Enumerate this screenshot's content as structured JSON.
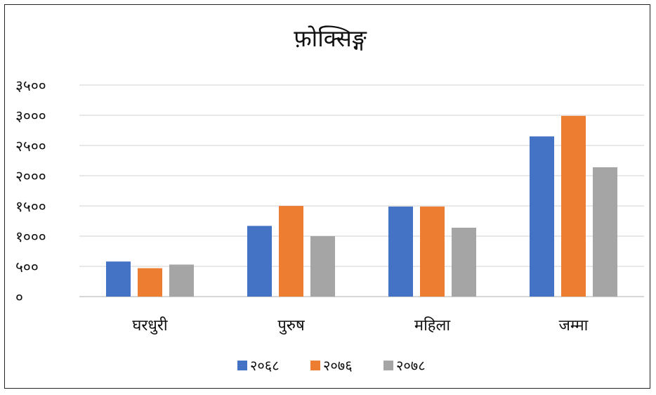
{
  "chart_data": {
    "type": "bar",
    "title": "फ़ोक्सिङ्ग",
    "categories": [
      "घरधुरी",
      "पुरुष",
      "महिला",
      "जम्मा"
    ],
    "series": [
      {
        "name": "२०६८",
        "color": "#4472C4",
        "values": [
          580,
          1170,
          1490,
          2650
        ]
      },
      {
        "name": "२०७६",
        "color": "#ED7D31",
        "values": [
          470,
          1500,
          1490,
          2990
        ]
      },
      {
        "name": "२०७८",
        "color": "#A5A5A5",
        "values": [
          530,
          1000,
          1140,
          2140
        ]
      }
    ],
    "ylim": [
      0,
      3500
    ],
    "yticks": [
      {
        "value": 0,
        "label": "०"
      },
      {
        "value": 500,
        "label": "५००"
      },
      {
        "value": 1000,
        "label": "१०००"
      },
      {
        "value": 1500,
        "label": "१५००"
      },
      {
        "value": 2000,
        "label": "२०००"
      },
      {
        "value": 2500,
        "label": "२५००"
      },
      {
        "value": 3000,
        "label": "३०००"
      },
      {
        "value": 3500,
        "label": "३५००"
      }
    ],
    "grid": true,
    "legend_position": "bottom"
  }
}
